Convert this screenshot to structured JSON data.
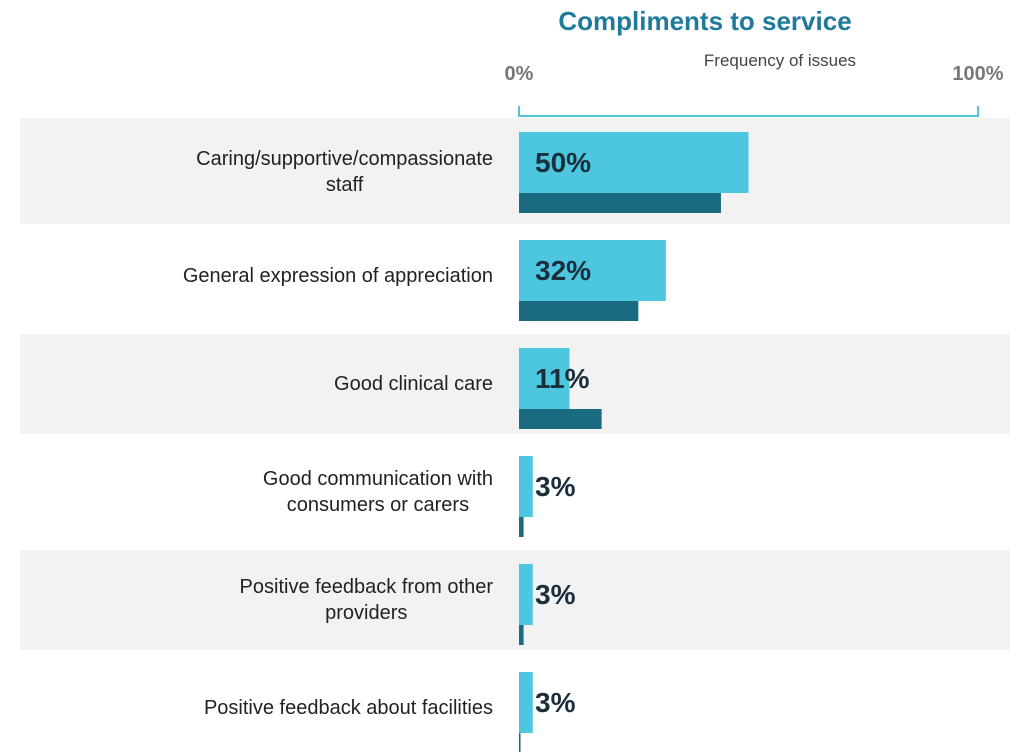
{
  "chart_data": {
    "type": "bar",
    "orientation": "horizontal",
    "title": "Compliments to service",
    "xlabel": "Frequency of issues",
    "categories": [
      "Caring/supportive/compassionate\nstaff",
      "General expression of appreciation",
      "Good clinical care",
      "Good communication with\nconsumers or carers",
      "Positive feedback from other\nproviders",
      "Positive feedback about facilities"
    ],
    "series": [
      {
        "color": "#4dc6e0",
        "values": [
          50,
          32,
          11,
          3,
          3,
          3
        ],
        "value_labels": [
          "50%",
          "32%",
          "11%",
          "3%",
          "3%",
          "3%"
        ]
      },
      {
        "color": "#1a6b80",
        "values": [
          44,
          26,
          18,
          1,
          1,
          0
        ]
      }
    ],
    "xlim": [
      0,
      100
    ],
    "xticks": [
      {
        "value": 0,
        "label": "0%"
      },
      {
        "value": 100,
        "label": "100%"
      }
    ]
  }
}
